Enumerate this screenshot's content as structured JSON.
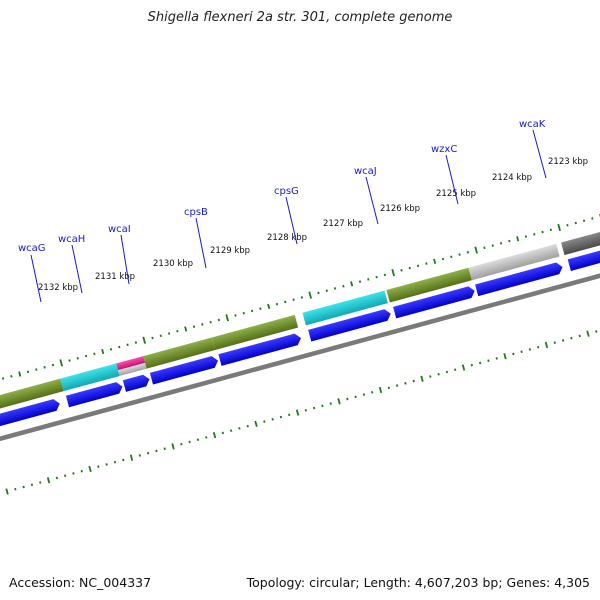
{
  "title": "Shigella flexneri 2a str. 301, complete genome",
  "footer": {
    "accession": "Accession: NC_004337",
    "topology": "Topology: circular; Length: 4,607,203 bp; Genes: 4,305"
  },
  "colors": {
    "gene_label": "#1a1acc",
    "cds_arrow": "#0000ee",
    "tick": "#1c7a1c",
    "backbone": "#7a7a7a",
    "olive": "#6b8e23",
    "cyan": "#1ec8d2",
    "magenta": "#e0208a",
    "light_gray": "#bdbdbd",
    "dark_gray": "#666666"
  },
  "gene_labels": [
    "wcaG",
    "wcaH",
    "wcaI",
    "cpsB",
    "cpsG",
    "wcaJ",
    "wzxC",
    "wcaK"
  ],
  "kbp_labels": [
    "2132 kbp",
    "2131 kbp",
    "2130 kbp",
    "2129 kbp",
    "2128 kbp",
    "2127 kbp",
    "2126 kbp",
    "2125 kbp",
    "2124 kbp",
    "2123 kbp"
  ]
}
